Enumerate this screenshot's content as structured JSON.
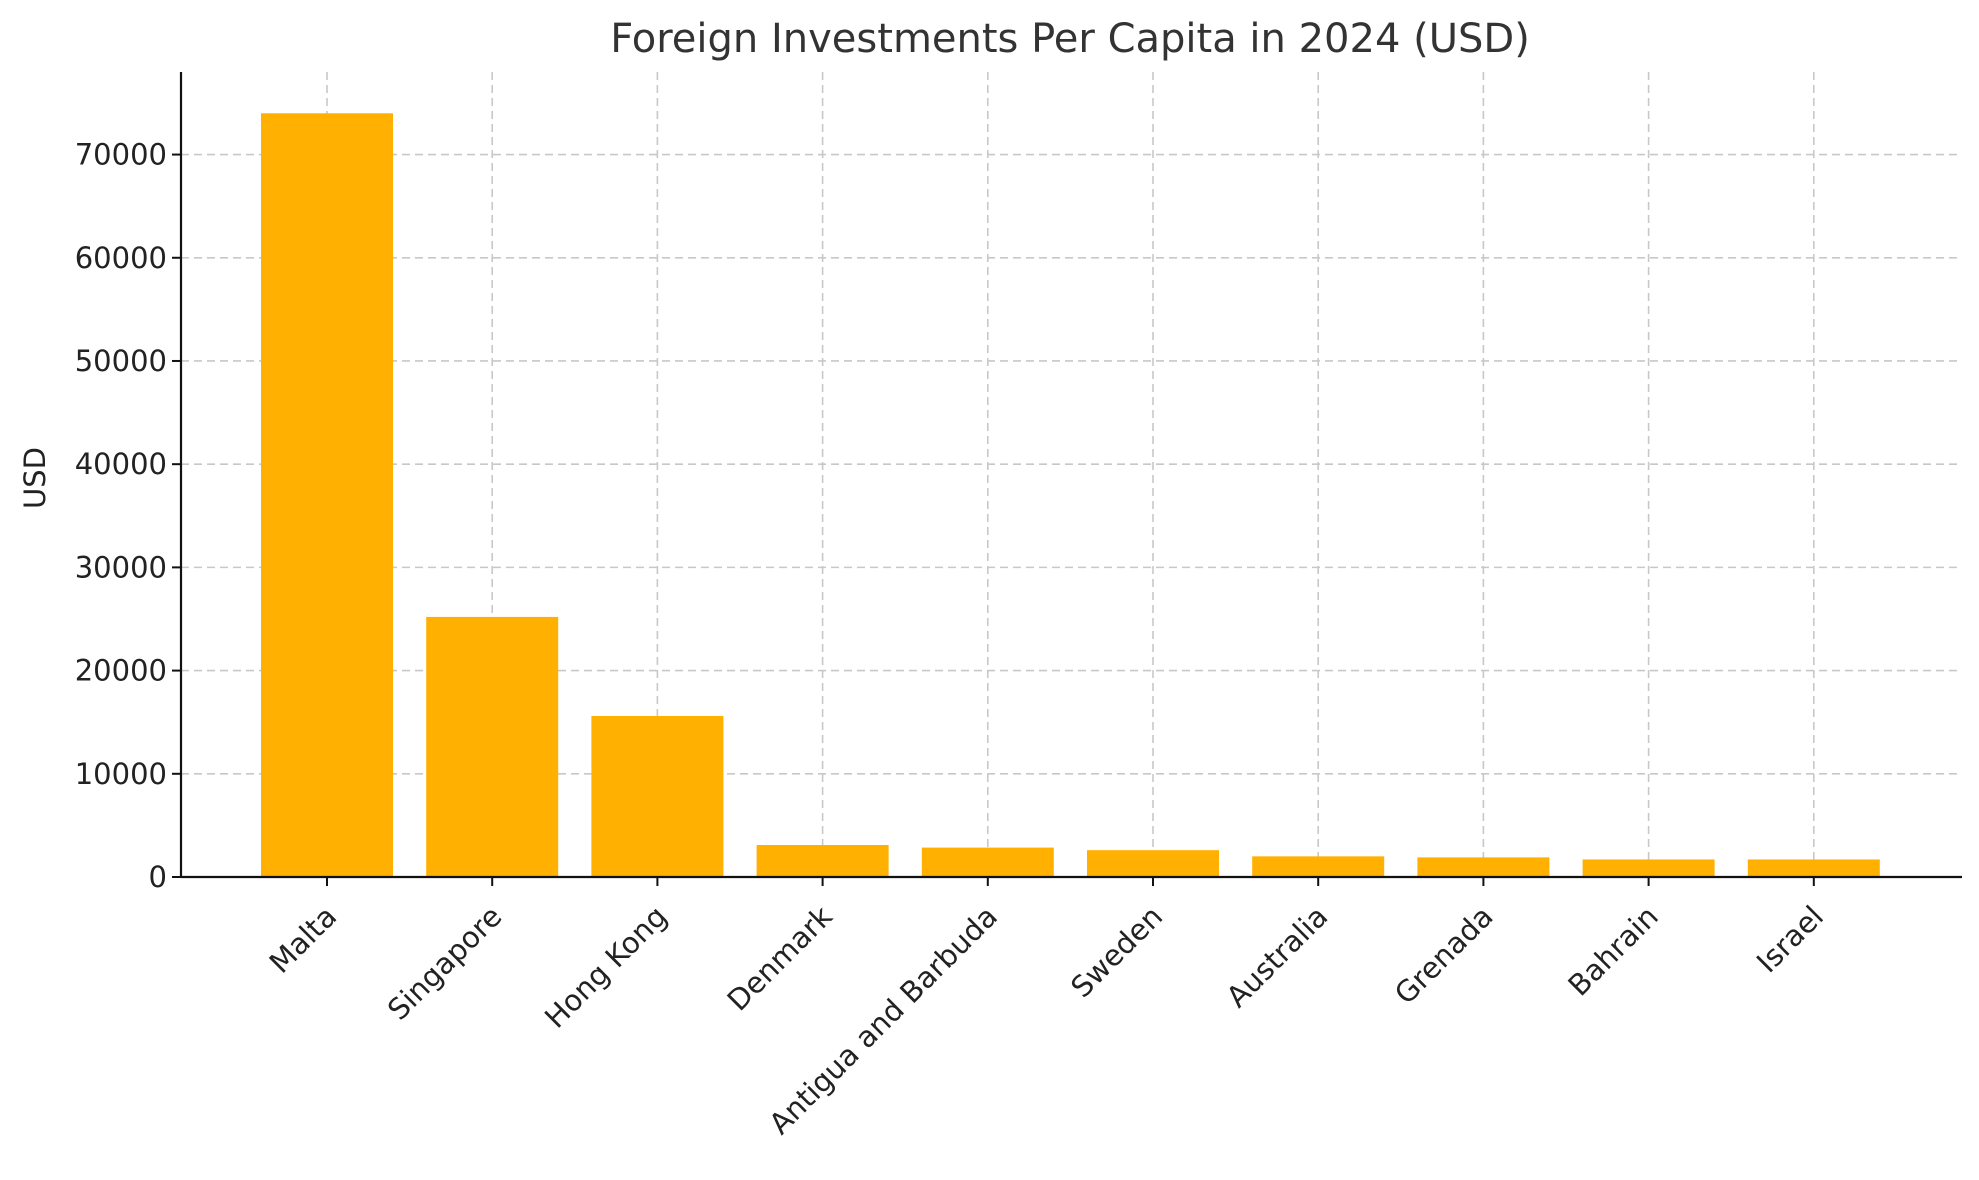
{
  "chart_data": {
    "type": "bar",
    "title": "Foreign Investments Per Capita in 2024 (USD)",
    "xlabel": "",
    "ylabel": "USD",
    "categories": [
      "Malta",
      "Singapore",
      "Hong Kong",
      "Denmark",
      "Antigua and Barbuda",
      "Sweden",
      "Australia",
      "Grenada",
      "Bahrain",
      "Israel"
    ],
    "values": [
      74000,
      25200,
      15600,
      3100,
      2850,
      2600,
      2000,
      1900,
      1700,
      1700
    ],
    "ylim": [
      0,
      78000
    ],
    "yticks": [
      "0",
      "10000",
      "20000",
      "30000",
      "40000",
      "50000",
      "60000",
      "70000"
    ],
    "grid": true,
    "bar_color": "#FFB000"
  }
}
